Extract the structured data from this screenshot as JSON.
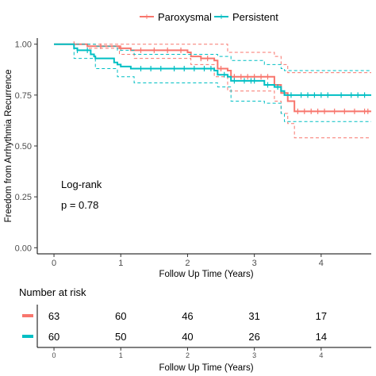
{
  "legend": {
    "entries": [
      {
        "label": "Paroxysmal",
        "color": "#F8766D"
      },
      {
        "label": "Persistent",
        "color": "#00BFC4"
      }
    ]
  },
  "annotation": {
    "line1": "Log-rank",
    "line2": "p = 0.78"
  },
  "chart_data": {
    "type": "line",
    "subtype": "kaplan-meier",
    "xlabel": "Follow Up Time (Years)",
    "ylabel": "Freedom from Arrhythmia Recurrence",
    "xlim": [
      -0.25,
      4.75
    ],
    "ylim": [
      -0.03,
      1.03
    ],
    "x_ticks": [
      0,
      1,
      2,
      3,
      4
    ],
    "y_ticks": [
      0.0,
      0.25,
      0.5,
      0.75,
      1.0
    ],
    "x_tick_labels": [
      "0",
      "1",
      "2",
      "3",
      "4"
    ],
    "y_tick_labels": [
      "0.00",
      "0.25",
      "0.50",
      "0.75",
      "1.00"
    ],
    "grid": false,
    "legend_position": "top",
    "series": [
      {
        "name": "Paroxysmal",
        "color": "#F8766D",
        "x": [
          0,
          0.5,
          0.98,
          1.15,
          1.2,
          2.0,
          2.05,
          2.2,
          2.4,
          2.45,
          2.6,
          2.65,
          3.1,
          3.3,
          3.4,
          3.5,
          3.6,
          4.75
        ],
        "y": [
          1.0,
          0.99,
          0.98,
          0.97,
          0.97,
          0.96,
          0.94,
          0.93,
          0.92,
          0.88,
          0.87,
          0.84,
          0.84,
          0.8,
          0.76,
          0.72,
          0.67,
          0.67
        ],
        "lower": {
          "x": [
            0,
            0.5,
            0.98,
            1.2,
            2.05,
            2.4,
            2.6,
            3.3,
            3.4,
            3.5,
            3.6,
            4.75
          ],
          "y": [
            1.0,
            0.98,
            0.95,
            0.93,
            0.9,
            0.84,
            0.77,
            0.72,
            0.66,
            0.61,
            0.54,
            0.54
          ]
        },
        "upper": {
          "x": [
            0,
            2.2,
            2.6,
            3.3,
            3.4,
            3.5,
            4.75
          ],
          "y": [
            1.0,
            1.0,
            0.96,
            0.94,
            0.9,
            0.86,
            0.86
          ]
        },
        "censor_x": [
          0.3,
          0.7,
          1.0,
          1.3,
          1.5,
          1.7,
          1.9,
          2.2,
          2.3,
          2.5,
          2.7,
          2.8,
          2.9,
          3.0,
          3.1,
          3.2,
          3.65,
          3.75,
          3.85,
          3.95,
          4.05,
          4.2,
          4.35,
          4.5,
          4.65,
          4.7
        ]
      },
      {
        "name": "Persistent",
        "color": "#00BFC4",
        "x": [
          0,
          0.3,
          0.35,
          0.55,
          0.6,
          0.62,
          0.9,
          0.95,
          1.0,
          1.15,
          1.2,
          2.4,
          2.45,
          2.6,
          2.65,
          3.1,
          3.15,
          3.3,
          3.4,
          3.45,
          4.75
        ],
        "y": [
          1.0,
          0.98,
          0.97,
          0.95,
          0.94,
          0.93,
          0.91,
          0.9,
          0.89,
          0.88,
          0.88,
          0.87,
          0.85,
          0.84,
          0.82,
          0.82,
          0.8,
          0.79,
          0.77,
          0.75,
          0.75
        ],
        "lower": {
          "x": [
            0,
            0.3,
            0.62,
            0.95,
            1.2,
            2.45,
            2.65,
            3.15,
            3.4,
            3.45,
            4.75
          ],
          "y": [
            1.0,
            0.93,
            0.88,
            0.84,
            0.81,
            0.79,
            0.72,
            0.71,
            0.66,
            0.62,
            0.62
          ]
        },
        "upper": {
          "x": [
            0,
            0.3,
            0.62,
            0.95,
            1.2,
            2.45,
            2.65,
            3.15,
            3.4,
            3.45,
            4.75
          ],
          "y": [
            1.0,
            1.0,
            0.99,
            0.97,
            0.95,
            0.94,
            0.92,
            0.9,
            0.88,
            0.87,
            0.87
          ]
        },
        "censor_x": [
          0.35,
          0.5,
          1.3,
          1.45,
          1.6,
          1.8,
          1.95,
          2.1,
          2.25,
          2.35,
          2.55,
          2.7,
          2.85,
          2.95,
          3.0,
          3.2,
          3.35,
          3.55,
          3.7,
          3.8,
          3.9,
          4.0,
          4.1,
          4.3,
          4.45,
          4.55,
          4.65
        ]
      }
    ]
  },
  "risk_table": {
    "title": "Number at risk",
    "xlabel": "Follow Up Time (Years)",
    "x_ticks": [
      0,
      1,
      2,
      3,
      4
    ],
    "x_tick_labels": [
      "0",
      "1",
      "2",
      "3",
      "4"
    ],
    "rows": [
      {
        "group": "Paroxysmal",
        "color": "#F8766D",
        "values": [
          "63",
          "60",
          "46",
          "31",
          "17"
        ]
      },
      {
        "group": "Persistent",
        "color": "#00BFC4",
        "values": [
          "60",
          "50",
          "40",
          "26",
          "14"
        ]
      }
    ]
  }
}
